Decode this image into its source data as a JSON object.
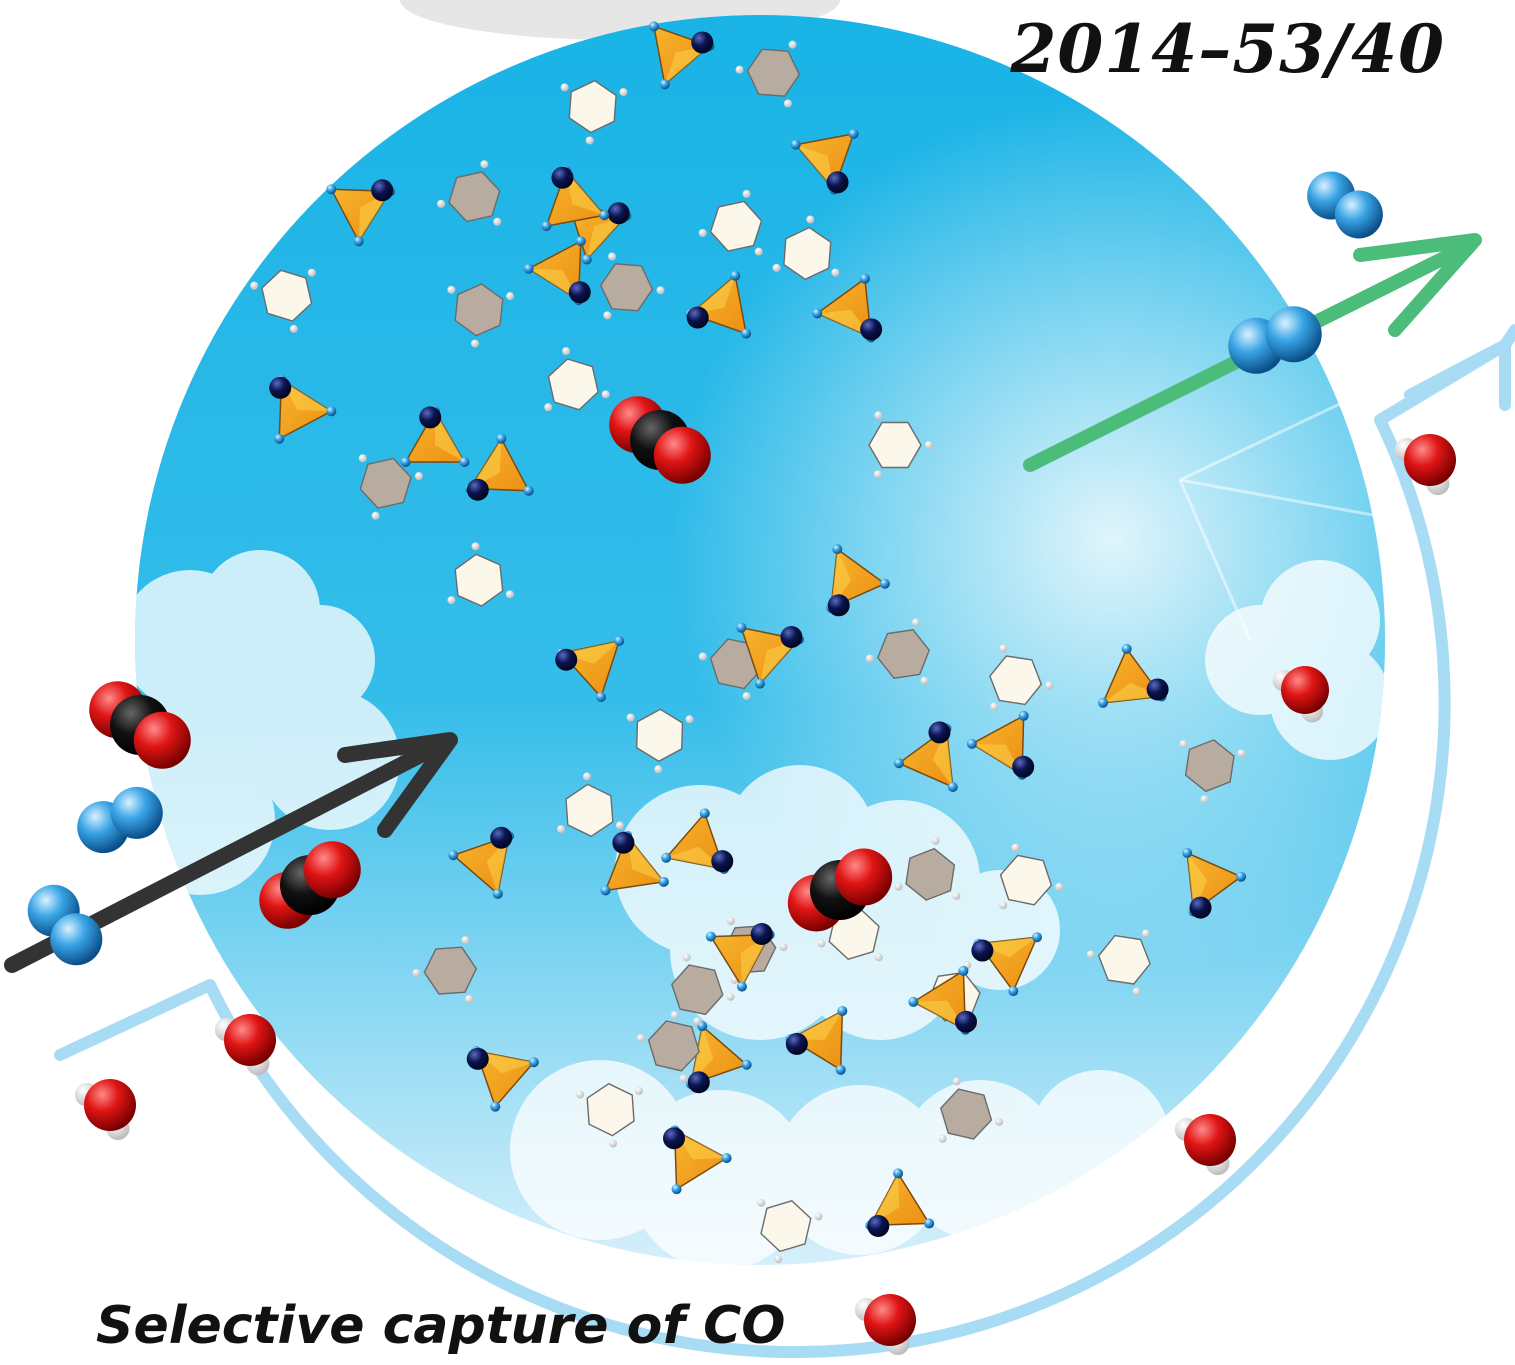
{
  "issue_code": "2014–53/40",
  "caption_partial": "Selective capture of CO",
  "colors": {
    "sky_top": "#1ab6e8",
    "sky_bottom": "#c9ecfb",
    "tetrahedron": "#f4a21d",
    "tetrahedron_dark": "#b86a1c",
    "hexagon": "#fbf7ea",
    "node_blue": "#1c8ad4",
    "node_navy": "#0a1450",
    "oxygen": "#e11a1a",
    "carbon": "#111111",
    "nitrogen_blue": "#3aa5e6",
    "arrow_black": "#333333",
    "arrow_green": "#4cbc7a",
    "arrow_light": "#a8dcf5"
  },
  "icons": [
    "co2-molecule-icon",
    "n2-molecule-icon",
    "h2o-molecule-icon",
    "framework-cluster-icon",
    "inlet-arrow-icon",
    "outlet-arrow-icon"
  ]
}
